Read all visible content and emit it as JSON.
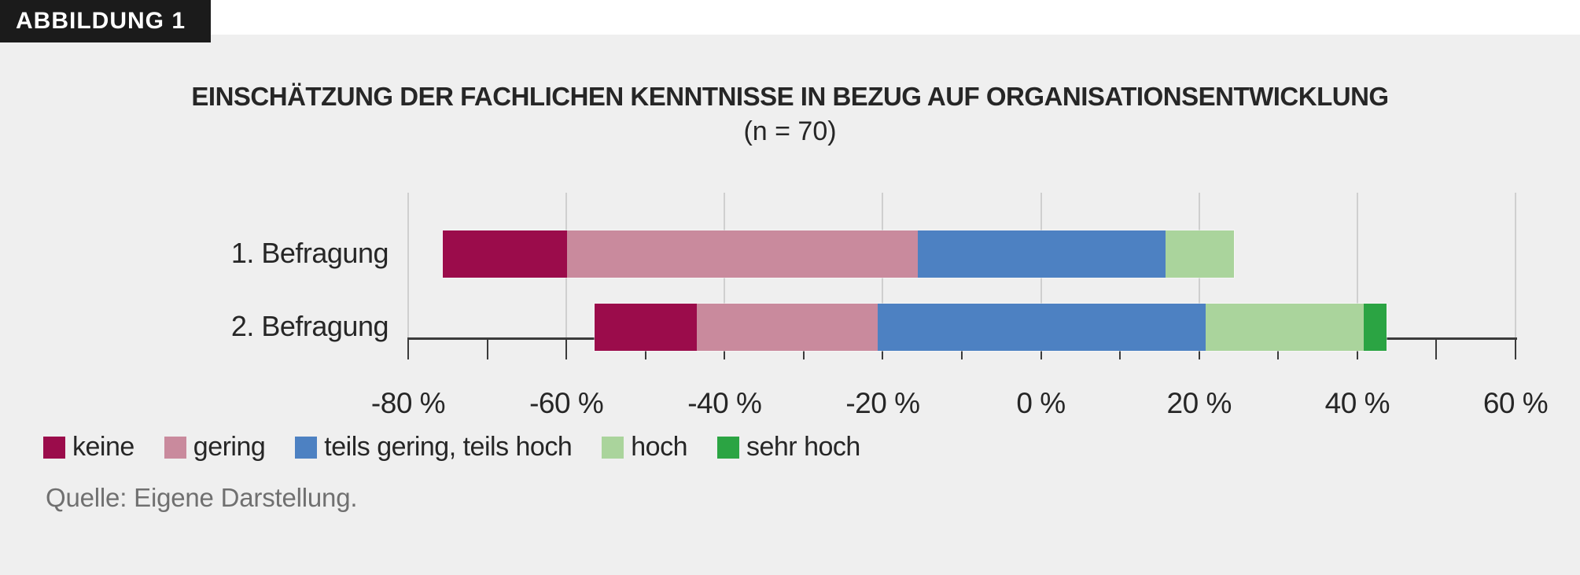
{
  "figure_label": "ABBILDUNG 1",
  "colors": {
    "page_bg": "#ffffff",
    "panel_bg": "#efefef",
    "tag_bg": "#1b1b1b",
    "tag_text": "#ffffff",
    "axis": "#3b3b3b",
    "grid": "#cfcfcf",
    "text": "#262626",
    "muted_text": "#707070"
  },
  "chart_data": {
    "type": "bar",
    "variant": "horizontal-diverging-stacked",
    "title": "EINSCHÄTZUNG DER FACHLICHEN KENNTNISSE IN BEZUG AUF ORGANISATIONSENTWICKLUNG",
    "subtitle": "(n = 70)",
    "categories": [
      "1. Befragung",
      "2. Befragung"
    ],
    "series": [
      {
        "name": "keine",
        "color": "#9B0C4B",
        "values": [
          15.7,
          12.9
        ]
      },
      {
        "name": "gering",
        "color": "#C98A9D",
        "values": [
          44.3,
          22.9
        ]
      },
      {
        "name": "teils gering, teils hoch",
        "color": "#4D81C2",
        "values": [
          31.4,
          41.4
        ]
      },
      {
        "name": "hoch",
        "color": "#AAD49C",
        "values": [
          8.6,
          20.0
        ]
      },
      {
        "name": "sehr hoch",
        "color": "#2BA443",
        "values": [
          0,
          2.9
        ]
      }
    ],
    "neutral_series_index": 2,
    "unit": "%",
    "xlim": [
      -80,
      60
    ],
    "x_major_step": 20,
    "x_minor_step": 10,
    "x_tick_labels": [
      "-80 %",
      "-60 %",
      "-40 %",
      "-20 %",
      "0 %",
      "20 %",
      "40 %",
      "60 %"
    ],
    "grid": "vertical-major-lines",
    "legend_position": "bottom-left",
    "source": "Quelle: Eigene Darstellung."
  }
}
